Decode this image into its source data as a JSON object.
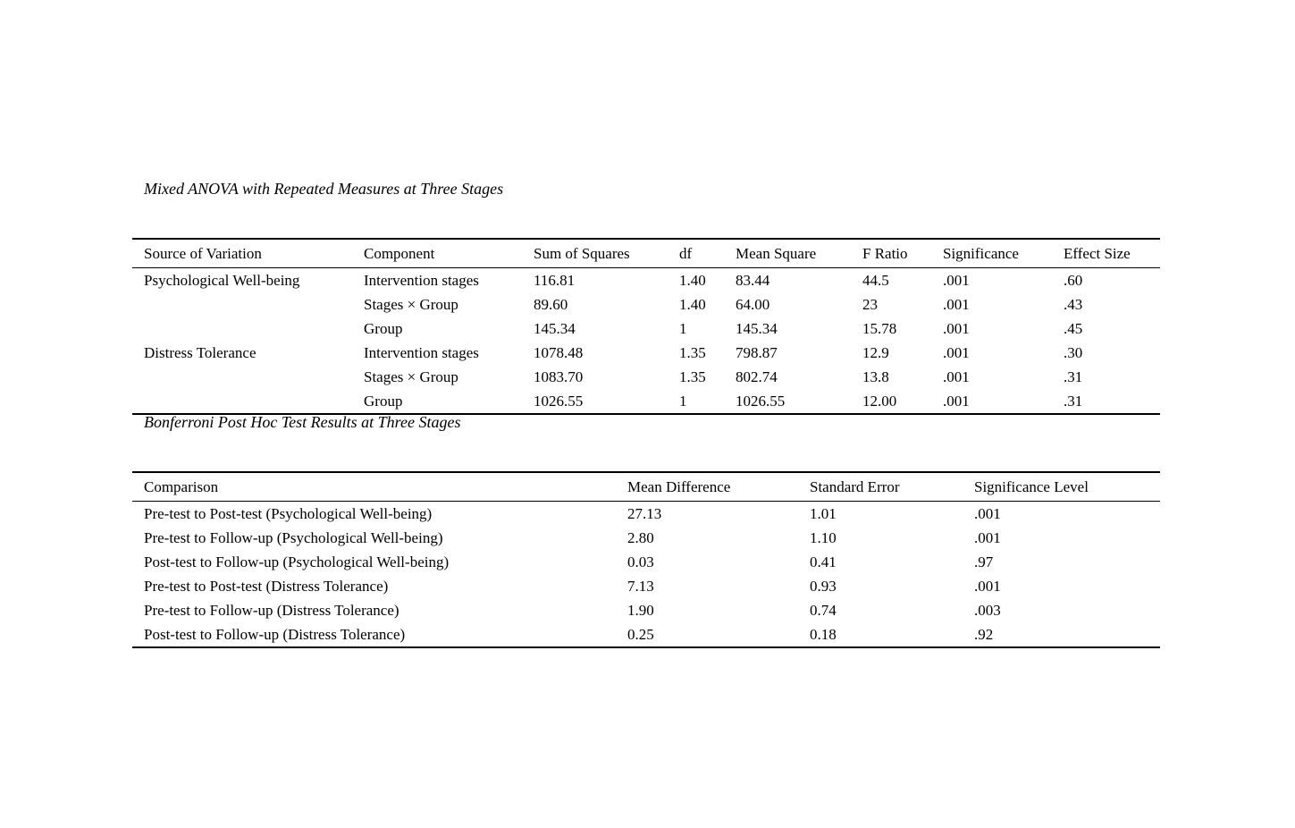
{
  "page": {
    "background_color": "#ffffff",
    "text_color": "#000000"
  },
  "anova_table": {
    "title": "Mixed ANOVA with Repeated Measures at Three Stages",
    "columns": [
      "Source of Variation",
      "Component",
      "Sum of Squares",
      "df",
      "Mean Square",
      "F Ratio",
      "Significance",
      "Effect Size"
    ],
    "rows": [
      [
        "Psychological Well-being",
        "Intervention stages",
        "116.81",
        "1.40",
        "83.44",
        "44.5",
        ".001",
        ".60"
      ],
      [
        "",
        "Stages × Group",
        "89.60",
        "1.40",
        "64.00",
        "23",
        ".001",
        ".43"
      ],
      [
        "",
        "Group",
        "145.34",
        "1",
        "145.34",
        "15.78",
        ".001",
        ".45"
      ],
      [
        "Distress Tolerance",
        "Intervention stages",
        "1078.48",
        "1.35",
        "798.87",
        "12.9",
        ".001",
        ".30"
      ],
      [
        "",
        "Stages × Group",
        "1083.70",
        "1.35",
        "802.74",
        "13.8",
        ".001",
        ".31"
      ],
      [
        "",
        "Group",
        "1026.55",
        "1",
        "1026.55",
        "12.00",
        ".001",
        ".31"
      ]
    ]
  },
  "posthoc_table": {
    "title": "Bonferroni Post Hoc Test Results at Three Stages",
    "columns": [
      "Comparison",
      "Mean Difference",
      "Standard Error",
      "Significance Level"
    ],
    "rows": [
      [
        "Pre-test to Post-test (Psychological Well-being)",
        "27.13",
        "1.01",
        ".001"
      ],
      [
        "Pre-test to Follow-up (Psychological Well-being)",
        "2.80",
        "1.10",
        ".001"
      ],
      [
        "Post-test to Follow-up (Psychological Well-being)",
        "0.03",
        "0.41",
        ".97"
      ],
      [
        "Pre-test to Post-test (Distress Tolerance)",
        "7.13",
        "0.93",
        ".001"
      ],
      [
        "Pre-test to Follow-up (Distress Tolerance)",
        "1.90",
        "0.74",
        ".003"
      ],
      [
        "Post-test to Follow-up (Distress Tolerance)",
        "0.25",
        "0.18",
        ".92"
      ]
    ]
  }
}
